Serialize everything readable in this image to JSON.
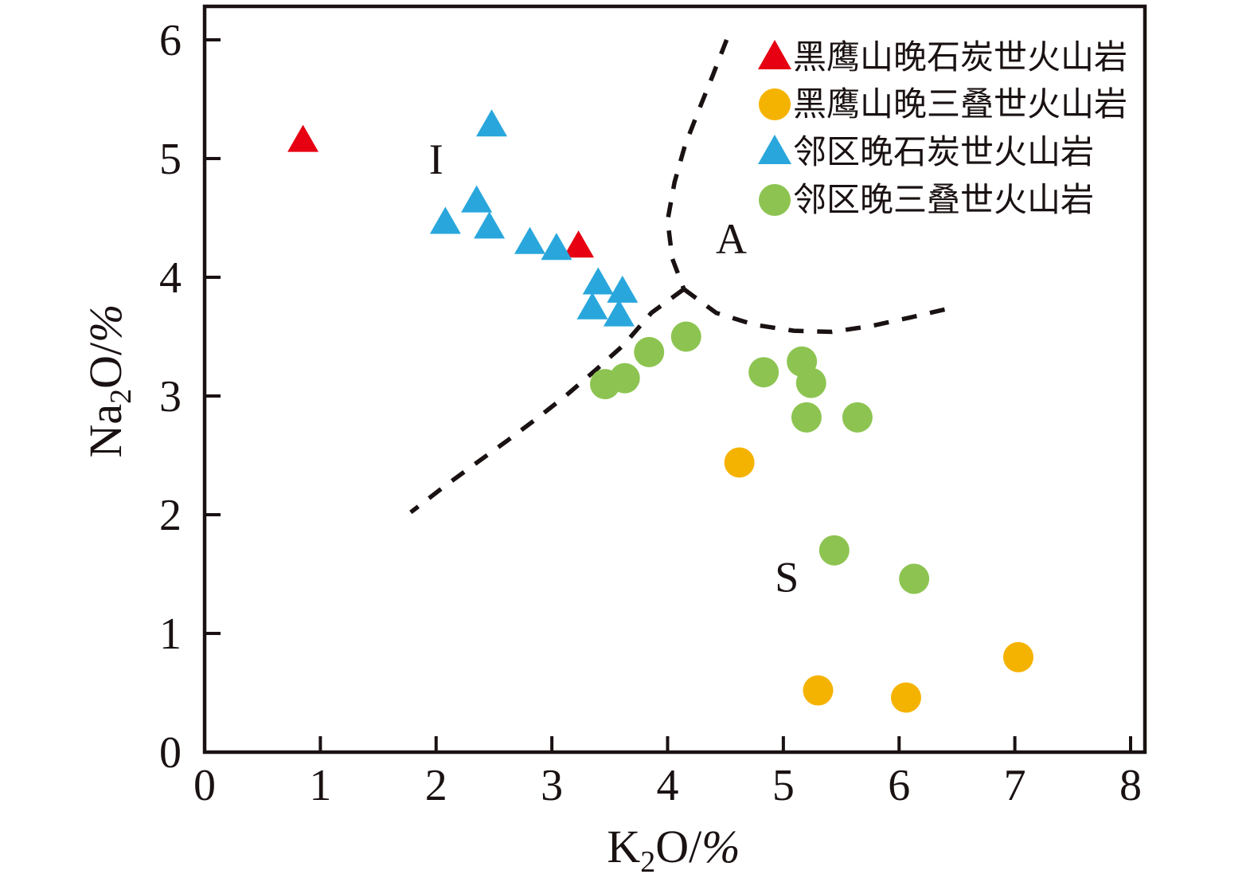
{
  "figure": {
    "background": "#ffffff",
    "ink_color": "#1a1212"
  },
  "chart_data": {
    "type": "scatter",
    "title": "",
    "xlabel": "K2O/%",
    "ylabel": "Na2O/%",
    "xlim": [
      0,
      8.12
    ],
    "ylim": [
      0,
      6.28
    ],
    "grid": false,
    "legend_position": "top-right-inside",
    "series": [
      {
        "name": "黑鹰山晚石炭世火山岩",
        "marker": "triangle",
        "color": "#e60012",
        "points": [
          [
            0.85,
            5.15
          ],
          [
            3.23,
            4.26
          ]
        ]
      },
      {
        "name": "黑鹰山晚三叠世火山岩",
        "marker": "circle",
        "color": "#f5b301",
        "points": [
          [
            4.62,
            2.44
          ],
          [
            5.3,
            0.52
          ],
          [
            6.06,
            0.46
          ],
          [
            7.03,
            0.8
          ]
        ]
      },
      {
        "name": "邻区晚石炭世火山岩",
        "marker": "triangle",
        "color": "#29a7dc",
        "points": [
          [
            2.48,
            5.28
          ],
          [
            2.35,
            4.64
          ],
          [
            2.08,
            4.46
          ],
          [
            2.46,
            4.42
          ],
          [
            2.81,
            4.29
          ],
          [
            3.04,
            4.24
          ],
          [
            3.4,
            3.95
          ],
          [
            3.35,
            3.74
          ],
          [
            3.61,
            3.88
          ],
          [
            3.58,
            3.68
          ]
        ]
      },
      {
        "name": "邻区晚三叠世火山岩",
        "marker": "circle",
        "color": "#8dc451",
        "points": [
          [
            3.46,
            3.1
          ],
          [
            3.63,
            3.15
          ],
          [
            3.84,
            3.37
          ],
          [
            4.16,
            3.5
          ],
          [
            4.83,
            3.2
          ],
          [
            5.16,
            3.29
          ],
          [
            5.24,
            3.11
          ],
          [
            5.2,
            2.82
          ],
          [
            5.64,
            2.82
          ],
          [
            5.44,
            1.7
          ],
          [
            6.13,
            1.46
          ]
        ]
      }
    ],
    "field_labels": [
      {
        "text": "I",
        "x": 2.0,
        "y": 5.0
      },
      {
        "text": "A",
        "x": 4.55,
        "y": 4.33
      },
      {
        "text": "S",
        "x": 5.03,
        "y": 1.48
      }
    ],
    "boundaries": {
      "style": "dashed",
      "color": "#1a1212",
      "junction": [
        4.14,
        3.9
      ],
      "lines": [
        {
          "name": "I-A boundary",
          "points": [
            [
              4.51,
              6.0
            ],
            [
              4.39,
              5.7
            ],
            [
              4.27,
              5.41
            ],
            [
              4.15,
              5.11
            ],
            [
              4.06,
              4.8
            ],
            [
              4.0,
              4.48
            ],
            [
              4.04,
              4.16
            ],
            [
              4.14,
              3.9
            ]
          ]
        },
        {
          "name": "I-S boundary",
          "points": [
            [
              4.14,
              3.9
            ],
            [
              3.86,
              3.7
            ],
            [
              3.62,
              3.43
            ],
            [
              3.38,
              3.22
            ],
            [
              3.13,
              3.01
            ],
            [
              2.87,
              2.81
            ],
            [
              2.61,
              2.62
            ],
            [
              2.34,
              2.43
            ],
            [
              2.06,
              2.23
            ],
            [
              1.78,
              2.02
            ]
          ]
        },
        {
          "name": "A-S boundary",
          "points": [
            [
              4.14,
              3.9
            ],
            [
              4.42,
              3.7
            ],
            [
              4.75,
              3.6
            ],
            [
              5.09,
              3.55
            ],
            [
              5.42,
              3.54
            ],
            [
              5.76,
              3.59
            ],
            [
              6.09,
              3.66
            ],
            [
              6.4,
              3.73
            ]
          ]
        }
      ]
    }
  },
  "axes": {
    "x": {
      "label_main": "K",
      "label_sub": "2",
      "label_mid": "O/",
      "label_pct": "%",
      "ticks": [
        "0",
        "1",
        "2",
        "3",
        "4",
        "5",
        "6",
        "7",
        "8"
      ]
    },
    "y": {
      "label_main": "Na",
      "label_sub": "2",
      "label_mid": "O/",
      "label_pct": "%",
      "ticks": [
        "0",
        "1",
        "2",
        "3",
        "4",
        "5",
        "6"
      ]
    }
  },
  "legend": {
    "items": [
      {
        "label": "黑鹰山晚石炭世火山岩",
        "marker": "triangle",
        "color": "#e60012"
      },
      {
        "label": "黑鹰山晚三叠世火山岩",
        "marker": "circle",
        "color": "#f5b301"
      },
      {
        "label": "邻区晚石炭世火山岩",
        "marker": "triangle",
        "color": "#29a7dc"
      },
      {
        "label": "邻区晚三叠世火山岩",
        "marker": "circle",
        "color": "#8dc451"
      }
    ]
  }
}
